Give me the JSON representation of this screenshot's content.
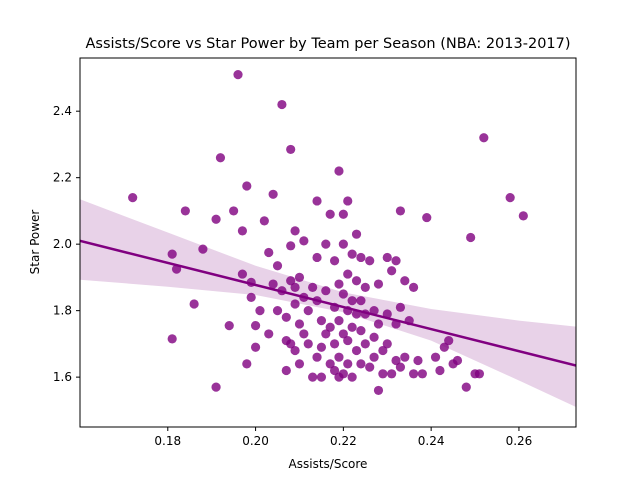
{
  "chart_data": {
    "type": "scatter",
    "title": "Assists/Score vs Star Power by Team per Season (NBA: 2013-2017)",
    "xlabel": "Assists/Score",
    "ylabel": "Star Power",
    "xlim": [
      0.16,
      0.273
    ],
    "ylim": [
      1.45,
      2.56
    ],
    "xticks": [
      0.18,
      0.2,
      0.22,
      0.24,
      0.26
    ],
    "xtick_labels": [
      "0.18",
      "0.20",
      "0.22",
      "0.24",
      "0.26"
    ],
    "yticks": [
      1.6,
      1.8,
      2.0,
      2.2,
      2.4
    ],
    "ytick_labels": [
      "1.6",
      "1.8",
      "2.0",
      "2.2",
      "2.4"
    ],
    "grid": false,
    "colors": {
      "points": "#800080",
      "regression_line": "#800080",
      "confidence_band": "#e8d2e8"
    },
    "regression": {
      "x": [
        0.16,
        0.273
      ],
      "y": [
        2.01,
        1.635
      ]
    },
    "confidence_band": {
      "x": [
        0.16,
        0.18,
        0.2,
        0.22,
        0.24,
        0.26,
        0.273
      ],
      "upper": [
        2.135,
        2.035,
        1.935,
        1.855,
        1.805,
        1.77,
        1.752
      ],
      "lower": [
        1.893,
        1.872,
        1.847,
        1.795,
        1.71,
        1.59,
        1.51
      ]
    },
    "points": [
      [
        0.172,
        2.14
      ],
      [
        0.181,
        1.97
      ],
      [
        0.182,
        1.925
      ],
      [
        0.181,
        1.715
      ],
      [
        0.184,
        2.1
      ],
      [
        0.186,
        1.82
      ],
      [
        0.188,
        1.985
      ],
      [
        0.191,
        1.57
      ],
      [
        0.191,
        2.075
      ],
      [
        0.192,
        2.26
      ],
      [
        0.194,
        1.755
      ],
      [
        0.195,
        2.1
      ],
      [
        0.196,
        2.51
      ],
      [
        0.197,
        2.04
      ],
      [
        0.197,
        1.91
      ],
      [
        0.198,
        1.64
      ],
      [
        0.198,
        2.175
      ],
      [
        0.199,
        1.885
      ],
      [
        0.199,
        1.84
      ],
      [
        0.2,
        1.755
      ],
      [
        0.2,
        1.69
      ],
      [
        0.201,
        1.8
      ],
      [
        0.202,
        2.07
      ],
      [
        0.203,
        1.975
      ],
      [
        0.203,
        1.73
      ],
      [
        0.204,
        2.15
      ],
      [
        0.204,
        1.88
      ],
      [
        0.205,
        1.935
      ],
      [
        0.205,
        1.8
      ],
      [
        0.206,
        2.42
      ],
      [
        0.206,
        1.86
      ],
      [
        0.207,
        1.78
      ],
      [
        0.207,
        1.71
      ],
      [
        0.207,
        1.62
      ],
      [
        0.208,
        2.285
      ],
      [
        0.208,
        1.995
      ],
      [
        0.208,
        1.89
      ],
      [
        0.208,
        1.7
      ],
      [
        0.209,
        2.04
      ],
      [
        0.209,
        1.87
      ],
      [
        0.209,
        1.82
      ],
      [
        0.209,
        1.68
      ],
      [
        0.21,
        1.9
      ],
      [
        0.21,
        1.76
      ],
      [
        0.21,
        1.64
      ],
      [
        0.211,
        2.01
      ],
      [
        0.211,
        1.84
      ],
      [
        0.211,
        1.73
      ],
      [
        0.212,
        1.8
      ],
      [
        0.212,
        1.7
      ],
      [
        0.213,
        1.87
      ],
      [
        0.213,
        1.6
      ],
      [
        0.214,
        2.13
      ],
      [
        0.214,
        1.96
      ],
      [
        0.214,
        1.83
      ],
      [
        0.214,
        1.66
      ],
      [
        0.215,
        1.77
      ],
      [
        0.215,
        1.69
      ],
      [
        0.215,
        1.6
      ],
      [
        0.216,
        2.0
      ],
      [
        0.216,
        1.86
      ],
      [
        0.216,
        1.73
      ],
      [
        0.217,
        2.09
      ],
      [
        0.217,
        1.75
      ],
      [
        0.217,
        1.64
      ],
      [
        0.218,
        1.95
      ],
      [
        0.218,
        1.81
      ],
      [
        0.218,
        1.7
      ],
      [
        0.218,
        1.62
      ],
      [
        0.219,
        2.22
      ],
      [
        0.219,
        1.88
      ],
      [
        0.219,
        1.77
      ],
      [
        0.219,
        1.66
      ],
      [
        0.219,
        1.6
      ],
      [
        0.22,
        2.09
      ],
      [
        0.22,
        2.0
      ],
      [
        0.22,
        1.85
      ],
      [
        0.22,
        1.73
      ],
      [
        0.22,
        1.61
      ],
      [
        0.221,
        2.13
      ],
      [
        0.221,
        1.91
      ],
      [
        0.221,
        1.8
      ],
      [
        0.221,
        1.71
      ],
      [
        0.221,
        1.64
      ],
      [
        0.222,
        1.97
      ],
      [
        0.222,
        1.83
      ],
      [
        0.222,
        1.75
      ],
      [
        0.222,
        1.6
      ],
      [
        0.223,
        2.03
      ],
      [
        0.223,
        1.89
      ],
      [
        0.223,
        1.79
      ],
      [
        0.223,
        1.68
      ],
      [
        0.224,
        1.96
      ],
      [
        0.224,
        1.83
      ],
      [
        0.224,
        1.74
      ],
      [
        0.224,
        1.64
      ],
      [
        0.225,
        1.87
      ],
      [
        0.225,
        1.79
      ],
      [
        0.225,
        1.7
      ],
      [
        0.226,
        1.95
      ],
      [
        0.226,
        1.63
      ],
      [
        0.227,
        1.8
      ],
      [
        0.227,
        1.72
      ],
      [
        0.227,
        1.66
      ],
      [
        0.228,
        1.88
      ],
      [
        0.228,
        1.76
      ],
      [
        0.228,
        1.56
      ],
      [
        0.229,
        1.68
      ],
      [
        0.229,
        1.61
      ],
      [
        0.23,
        1.96
      ],
      [
        0.23,
        1.79
      ],
      [
        0.23,
        1.7
      ],
      [
        0.231,
        1.92
      ],
      [
        0.231,
        1.61
      ],
      [
        0.232,
        1.76
      ],
      [
        0.232,
        1.95
      ],
      [
        0.232,
        1.65
      ],
      [
        0.233,
        2.1
      ],
      [
        0.233,
        1.81
      ],
      [
        0.233,
        1.63
      ],
      [
        0.234,
        1.89
      ],
      [
        0.234,
        1.66
      ],
      [
        0.235,
        1.77
      ],
      [
        0.236,
        1.87
      ],
      [
        0.236,
        1.61
      ],
      [
        0.237,
        1.65
      ],
      [
        0.238,
        1.61
      ],
      [
        0.239,
        2.08
      ],
      [
        0.241,
        1.66
      ],
      [
        0.242,
        1.62
      ],
      [
        0.243,
        1.69
      ],
      [
        0.244,
        1.71
      ],
      [
        0.245,
        1.64
      ],
      [
        0.246,
        1.65
      ],
      [
        0.248,
        1.57
      ],
      [
        0.249,
        2.02
      ],
      [
        0.25,
        1.61
      ],
      [
        0.251,
        1.61
      ],
      [
        0.252,
        2.32
      ],
      [
        0.258,
        2.14
      ],
      [
        0.261,
        2.085
      ]
    ]
  }
}
